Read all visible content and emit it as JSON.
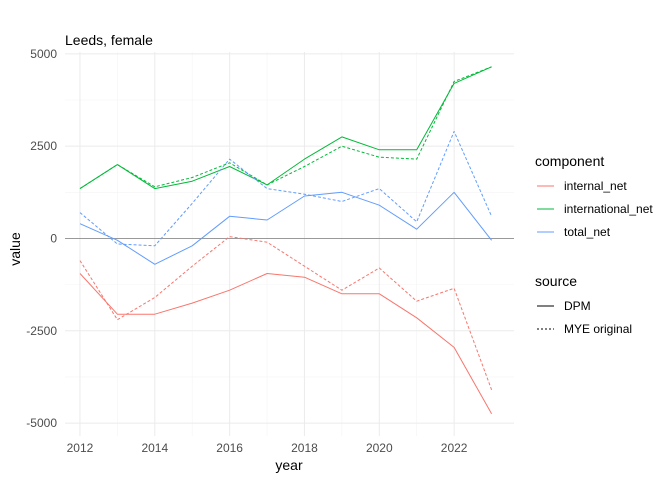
{
  "chart_data": {
    "type": "line",
    "title": "Leeds, female",
    "xlabel": "year",
    "ylabel": "value",
    "xlim": [
      2011.6,
      2023.6
    ],
    "ylim": [
      -5350,
      5050
    ],
    "x_ticks": [
      2012,
      2014,
      2016,
      2018,
      2020,
      2022
    ],
    "x_tick_labels": [
      "2012",
      "2014",
      "2016",
      "2018",
      "2020",
      "2022"
    ],
    "y_ticks": [
      -5000,
      -2500,
      0,
      2500,
      5000
    ],
    "y_tick_labels": [
      "-5000",
      "-2500",
      "0",
      "2500",
      "5000"
    ],
    "reference_line": 0,
    "grid": true,
    "legend_placement": "right",
    "x": [
      2012,
      2013,
      2014,
      2015,
      2016,
      2017,
      2018,
      2019,
      2020,
      2021,
      2022,
      2023
    ],
    "colors": {
      "internal_net": "#F8766D",
      "international_net": "#00BA38",
      "total_net": "#619CFF",
      "reference": "#999999"
    },
    "legend": {
      "component_title": "component",
      "component_items": [
        "internal_net",
        "international_net",
        "total_net"
      ],
      "source_title": "source",
      "source_items": [
        "DPM",
        "MYE original"
      ]
    },
    "series": [
      {
        "component": "internal_net",
        "source": "DPM",
        "values": [
          -950,
          -2050,
          -2050,
          -1750,
          -1400,
          -950,
          -1050,
          -1500,
          -1500,
          -2150,
          -2950,
          -4750
        ]
      },
      {
        "component": "internal_net",
        "source": "MYE original",
        "values": [
          -600,
          -2200,
          -1600,
          -750,
          50,
          -100,
          -750,
          -1400,
          -800,
          -1700,
          -1350,
          -4100
        ]
      },
      {
        "component": "international_net",
        "source": "DPM",
        "values": [
          1350,
          2000,
          1350,
          1550,
          1950,
          1450,
          2150,
          2750,
          2400,
          2400,
          4200,
          4650
        ]
      },
      {
        "component": "international_net",
        "source": "MYE original",
        "values": [
          1350,
          2000,
          1400,
          1650,
          2050,
          1450,
          1950,
          2500,
          2200,
          2150,
          4250,
          4650
        ]
      },
      {
        "component": "total_net",
        "source": "DPM",
        "values": [
          400,
          -50,
          -700,
          -200,
          600,
          500,
          1150,
          1250,
          900,
          250,
          1250,
          -50
        ]
      },
      {
        "component": "total_net",
        "source": "MYE original",
        "values": [
          700,
          -150,
          -200,
          950,
          2150,
          1350,
          1200,
          1000,
          1350,
          450,
          2900,
          600
        ]
      }
    ]
  }
}
